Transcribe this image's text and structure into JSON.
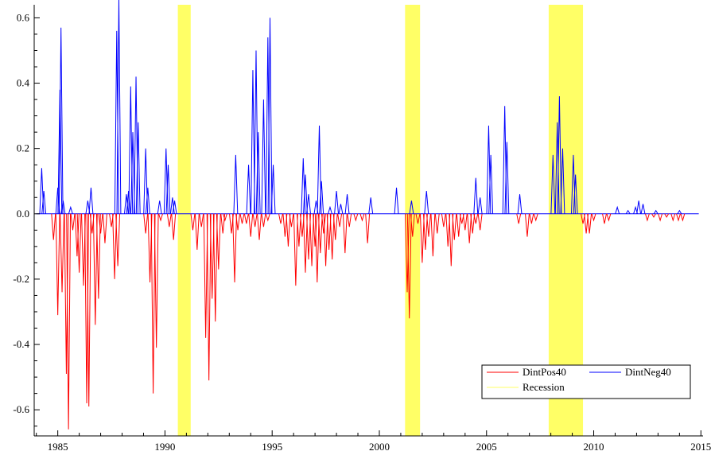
{
  "chart_data": {
    "type": "line",
    "xlim": [
      1983.9,
      2015.1
    ],
    "ylim": [
      -0.68,
      0.64
    ],
    "x_ticks": [
      1985,
      1990,
      1995,
      2000,
      2005,
      2010,
      2015
    ],
    "x_tick_labels": [
      "1985",
      "1990",
      "1995",
      "2000",
      "2005",
      "2010",
      "2015"
    ],
    "y_ticks": [
      0.6,
      0.4,
      0.2,
      0.0,
      -0.2,
      -0.4,
      -0.6
    ],
    "y_tick_labels": [
      "0.6",
      "0.4",
      "0.2",
      "0.0",
      "-0.2",
      "-0.4",
      "-0.6"
    ],
    "grid": false,
    "legend_position": "bottom-right",
    "recessions": [
      [
        1990.6,
        1991.2
      ],
      [
        2001.2,
        2001.9
      ],
      [
        2007.9,
        2009.5
      ]
    ],
    "series": [
      {
        "name": "DintPos40",
        "color": "#ff0000",
        "spikes": [
          [
            1984.8,
            -0.08
          ],
          [
            1985.0,
            -0.31
          ],
          [
            1985.2,
            -0.24
          ],
          [
            1985.4,
            -0.49
          ],
          [
            1985.5,
            -0.66
          ],
          [
            1985.7,
            -0.05
          ],
          [
            1985.9,
            -0.13
          ],
          [
            1986.0,
            -0.18
          ],
          [
            1986.2,
            -0.22
          ],
          [
            1986.35,
            -0.58
          ],
          [
            1986.45,
            -0.59
          ],
          [
            1986.6,
            -0.06
          ],
          [
            1986.75,
            -0.34
          ],
          [
            1986.9,
            -0.26
          ],
          [
            1987.0,
            -0.06
          ],
          [
            1987.2,
            -0.09
          ],
          [
            1987.5,
            -0.04
          ],
          [
            1987.65,
            -0.2
          ],
          [
            1987.8,
            -0.16
          ],
          [
            1989.1,
            -0.06
          ],
          [
            1989.3,
            -0.21
          ],
          [
            1989.45,
            -0.55
          ],
          [
            1989.6,
            -0.41
          ],
          [
            1989.8,
            -0.02
          ],
          [
            1990.2,
            -0.04
          ],
          [
            1990.4,
            -0.08
          ],
          [
            1991.3,
            -0.05
          ],
          [
            1991.5,
            -0.11
          ],
          [
            1991.7,
            -0.04
          ],
          [
            1991.9,
            -0.38
          ],
          [
            1992.05,
            -0.51
          ],
          [
            1992.2,
            -0.26
          ],
          [
            1992.35,
            -0.33
          ],
          [
            1992.5,
            -0.17
          ],
          [
            1992.7,
            -0.06
          ],
          [
            1992.8,
            -0.02
          ],
          [
            1993.1,
            -0.06
          ],
          [
            1993.25,
            -0.21
          ],
          [
            1993.4,
            -0.05
          ],
          [
            1993.6,
            -0.03
          ],
          [
            1993.8,
            -0.03
          ],
          [
            1994.0,
            -0.07
          ],
          [
            1994.2,
            -0.04
          ],
          [
            1994.4,
            -0.08
          ],
          [
            1994.6,
            -0.04
          ],
          [
            1994.8,
            -0.02
          ],
          [
            1995.4,
            -0.03
          ],
          [
            1995.6,
            -0.07
          ],
          [
            1995.75,
            -0.1
          ],
          [
            1995.9,
            -0.04
          ],
          [
            1996.1,
            -0.22
          ],
          [
            1996.25,
            -0.1
          ],
          [
            1996.4,
            -0.07
          ],
          [
            1996.55,
            -0.18
          ],
          [
            1996.7,
            -0.14
          ],
          [
            1996.85,
            -0.16
          ],
          [
            1997.0,
            -0.1
          ],
          [
            1997.1,
            -0.21
          ],
          [
            1997.25,
            -0.12
          ],
          [
            1997.4,
            -0.06
          ],
          [
            1997.5,
            -0.16
          ],
          [
            1997.65,
            -0.11
          ],
          [
            1997.8,
            -0.14
          ],
          [
            1997.95,
            -0.08
          ],
          [
            1998.15,
            -0.04
          ],
          [
            1998.4,
            -0.12
          ],
          [
            1998.6,
            -0.04
          ],
          [
            1998.9,
            -0.02
          ],
          [
            1999.2,
            -0.02
          ],
          [
            1999.45,
            -0.09
          ],
          [
            2001.3,
            -0.24
          ],
          [
            2001.4,
            -0.32
          ],
          [
            2001.55,
            -0.07
          ],
          [
            2001.8,
            -0.03
          ],
          [
            2002.0,
            -0.15
          ],
          [
            2002.15,
            -0.11
          ],
          [
            2002.3,
            -0.07
          ],
          [
            2002.5,
            -0.13
          ],
          [
            2002.7,
            -0.06
          ],
          [
            2003.0,
            -0.04
          ],
          [
            2003.2,
            -0.1
          ],
          [
            2003.35,
            -0.16
          ],
          [
            2003.5,
            -0.08
          ],
          [
            2003.7,
            -0.07
          ],
          [
            2003.85,
            -0.03
          ],
          [
            2004.0,
            -0.05
          ],
          [
            2004.2,
            -0.09
          ],
          [
            2004.35,
            -0.06
          ],
          [
            2004.5,
            -0.03
          ],
          [
            2004.7,
            -0.05
          ],
          [
            2006.5,
            -0.03
          ],
          [
            2006.9,
            -0.07
          ],
          [
            2007.1,
            -0.03
          ],
          [
            2007.3,
            -0.02
          ],
          [
            2009.5,
            -0.03
          ],
          [
            2009.65,
            -0.06
          ],
          [
            2009.8,
            -0.06
          ],
          [
            2010.0,
            -0.02
          ],
          [
            2010.5,
            -0.03
          ],
          [
            2010.7,
            -0.02
          ],
          [
            2012.5,
            -0.02
          ],
          [
            2012.8,
            -0.01
          ],
          [
            2013.1,
            -0.02
          ],
          [
            2013.4,
            -0.01
          ],
          [
            2013.7,
            -0.02
          ],
          [
            2013.95,
            -0.02
          ],
          [
            2014.15,
            -0.02
          ]
        ]
      },
      {
        "name": "DintNeg40",
        "color": "#0000ff",
        "spikes": [
          [
            1984.25,
            0.14
          ],
          [
            1984.35,
            0.07
          ],
          [
            1985.0,
            0.08
          ],
          [
            1985.1,
            0.38
          ],
          [
            1985.15,
            0.57
          ],
          [
            1985.25,
            0.04
          ],
          [
            1985.6,
            0.02
          ],
          [
            1986.4,
            0.04
          ],
          [
            1986.55,
            0.08
          ],
          [
            1987.75,
            0.56
          ],
          [
            1987.85,
            0.66
          ],
          [
            1988.2,
            0.06
          ],
          [
            1988.3,
            0.07
          ],
          [
            1988.4,
            0.39
          ],
          [
            1988.5,
            0.25
          ],
          [
            1988.65,
            0.42
          ],
          [
            1988.75,
            0.28
          ],
          [
            1989.1,
            0.2
          ],
          [
            1989.2,
            0.08
          ],
          [
            1989.75,
            0.04
          ],
          [
            1990.05,
            0.2
          ],
          [
            1990.15,
            0.15
          ],
          [
            1990.35,
            0.05
          ],
          [
            1990.45,
            0.04
          ],
          [
            1993.3,
            0.18
          ],
          [
            1993.9,
            0.15
          ],
          [
            1994.1,
            0.44
          ],
          [
            1994.25,
            0.5
          ],
          [
            1994.35,
            0.25
          ],
          [
            1994.6,
            0.35
          ],
          [
            1994.8,
            0.54
          ],
          [
            1994.9,
            0.6
          ],
          [
            1995.05,
            0.15
          ],
          [
            1996.45,
            0.17
          ],
          [
            1996.55,
            0.12
          ],
          [
            1996.7,
            0.06
          ],
          [
            1997.05,
            0.04
          ],
          [
            1997.2,
            0.27
          ],
          [
            1997.3,
            0.1
          ],
          [
            1997.7,
            0.02
          ],
          [
            1998.0,
            0.07
          ],
          [
            1998.2,
            0.03
          ],
          [
            1998.5,
            0.06
          ],
          [
            1999.6,
            0.05
          ],
          [
            2000.8,
            0.08
          ],
          [
            2001.5,
            0.04
          ],
          [
            2002.2,
            0.07
          ],
          [
            2004.5,
            0.11
          ],
          [
            2004.7,
            0.05
          ],
          [
            2005.1,
            0.27
          ],
          [
            2005.2,
            0.18
          ],
          [
            2005.85,
            0.33
          ],
          [
            2005.95,
            0.22
          ],
          [
            2006.55,
            0.06
          ],
          [
            2008.1,
            0.18
          ],
          [
            2008.3,
            0.28
          ],
          [
            2008.4,
            0.36
          ],
          [
            2008.55,
            0.2
          ],
          [
            2009.05,
            0.18
          ],
          [
            2009.15,
            0.12
          ],
          [
            2011.1,
            0.02
          ],
          [
            2011.6,
            0.01
          ],
          [
            2011.95,
            0.02
          ],
          [
            2012.1,
            0.04
          ],
          [
            2012.3,
            0.03
          ],
          [
            2012.9,
            0.01
          ],
          [
            2014.0,
            0.01
          ]
        ]
      },
      {
        "name": "Recession",
        "color": "#ffff66"
      }
    ]
  }
}
